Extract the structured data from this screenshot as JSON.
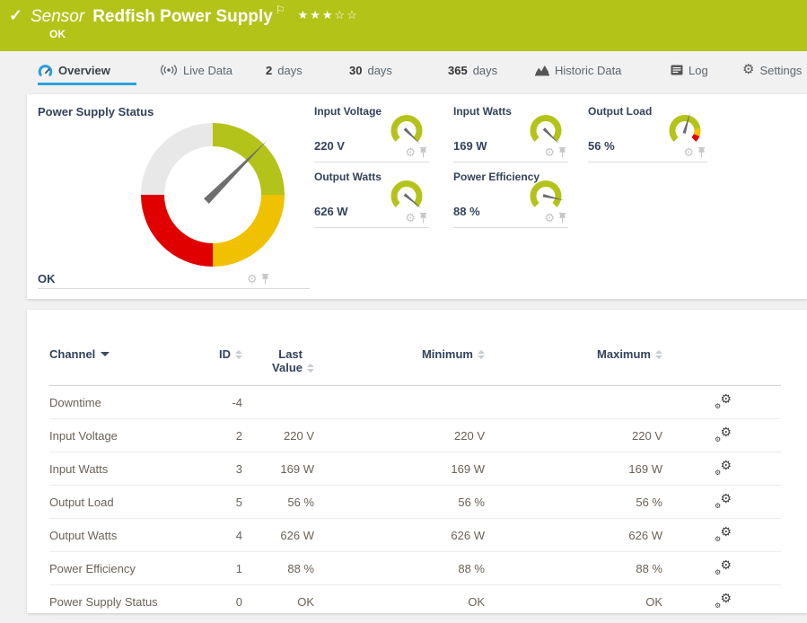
{
  "colors": {
    "header_green": "#b4c318",
    "accent_blue": "#2aa3dc",
    "gauge_green": "#b3c319",
    "gauge_yellow": "#efc100",
    "gauge_red": "#e00000",
    "gauge_gray": "#e8e8e8"
  },
  "icons": {
    "check": "✓",
    "flag": "⚐",
    "gear": "⚙"
  },
  "header": {
    "kind": "Sensor",
    "title": "Redfish Power Supply",
    "stars": "★★★☆☆",
    "status": "OK"
  },
  "tabs": {
    "items": [
      {
        "label": "Overview",
        "icon": "gauge-icon",
        "active": true
      },
      {
        "label": "Live Data",
        "icon": "broadcast-icon"
      },
      {
        "prefix": "2",
        "label": "days"
      },
      {
        "prefix": "30",
        "label": "days"
      },
      {
        "prefix": "365",
        "label": "days"
      },
      {
        "label": "Historic Data",
        "icon": "chart-icon"
      },
      {
        "label": "Log",
        "icon": "log-icon"
      },
      {
        "label": "Settings",
        "icon": "gear-icon"
      }
    ]
  },
  "status_gauge": {
    "title": "Power Supply Status",
    "status": "OK",
    "needle_deg": 45,
    "segments": [
      {
        "from": 0,
        "to": 90,
        "color": "#b3c319"
      },
      {
        "from": 90,
        "to": 180,
        "color": "#efc100"
      },
      {
        "from": 180,
        "to": 270,
        "color": "#e00000"
      },
      {
        "from": 270,
        "to": 360,
        "color": "#e8e8e8"
      }
    ]
  },
  "mini_gauges": [
    {
      "label": "Input Voltage",
      "value": "220 V",
      "percent": 100,
      "segments": [
        {
          "to": 100,
          "color": "#b3c319"
        }
      ]
    },
    {
      "label": "Input Watts",
      "value": "169 W",
      "percent": 100,
      "segments": [
        {
          "to": 100,
          "color": "#b3c319"
        }
      ]
    },
    {
      "label": "Output Load",
      "value": "56 %",
      "percent": 56,
      "segments": [
        {
          "to": 80,
          "color": "#b3c319"
        },
        {
          "to": 91,
          "color": "#efc100"
        },
        {
          "to": 100,
          "color": "#e00000"
        }
      ]
    },
    {
      "label": "Output Watts",
      "value": "626 W",
      "percent": 98,
      "segments": [
        {
          "to": 100,
          "color": "#b3c319"
        }
      ]
    },
    {
      "label": "Power Efficiency",
      "value": "88 %",
      "percent": 88,
      "segments": [
        {
          "to": 100,
          "color": "#b3c319"
        }
      ]
    }
  ],
  "table": {
    "columns": [
      "Channel",
      "ID",
      "Last Value",
      "Minimum",
      "Maximum"
    ],
    "sorted_by": "Channel",
    "rows": [
      {
        "channel": "Downtime",
        "id": "-4",
        "last": "",
        "min": "",
        "max": ""
      },
      {
        "channel": "Input Voltage",
        "id": "2",
        "last": "220 V",
        "min": "220 V",
        "max": "220 V"
      },
      {
        "channel": "Input Watts",
        "id": "3",
        "last": "169 W",
        "min": "169 W",
        "max": "169 W"
      },
      {
        "channel": "Output Load",
        "id": "5",
        "last": "56 %",
        "min": "56 %",
        "max": "56 %"
      },
      {
        "channel": "Output Watts",
        "id": "4",
        "last": "626 W",
        "min": "626 W",
        "max": "626 W"
      },
      {
        "channel": "Power Efficiency",
        "id": "1",
        "last": "88 %",
        "min": "88 %",
        "max": "88 %"
      },
      {
        "channel": "Power Supply Status",
        "id": "0",
        "last": "OK",
        "min": "OK",
        "max": "OK"
      }
    ]
  }
}
